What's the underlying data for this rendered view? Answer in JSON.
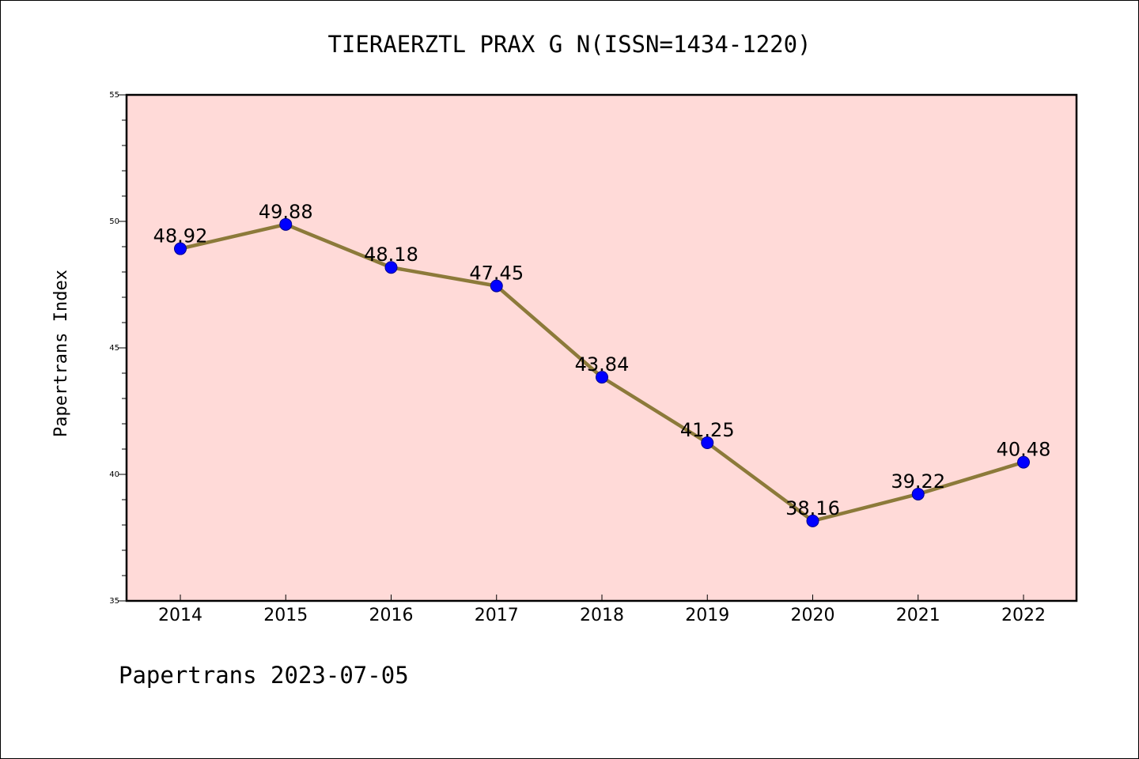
{
  "chart_data": {
    "type": "line",
    "title": "TIERAERZTL PRAX G N(ISSN=1434-1220)",
    "xlabel": "",
    "ylabel": "Papertrans Index",
    "categories": [
      "2014",
      "2015",
      "2016",
      "2017",
      "2018",
      "2019",
      "2020",
      "2021",
      "2022"
    ],
    "series": [
      {
        "values": [
          48.92,
          49.88,
          48.18,
          47.45,
          43.84,
          41.25,
          38.16,
          39.22,
          40.48
        ]
      }
    ],
    "data_labels": [
      "48.92",
      "49.88",
      "48.18",
      "47.45",
      "43.84",
      "41.25",
      "38.16",
      "39.22",
      "40.48"
    ],
    "ylim": [
      35,
      55
    ],
    "yticks": [
      "35",
      "40",
      "45",
      "50",
      "55"
    ],
    "grid": false,
    "legend": "none",
    "colors": {
      "plot_background": "#FFDAD8",
      "line": "#8C7A3A",
      "marker": "#0000FF"
    }
  },
  "footer": {
    "text": "Papertrans 2023-07-05"
  }
}
